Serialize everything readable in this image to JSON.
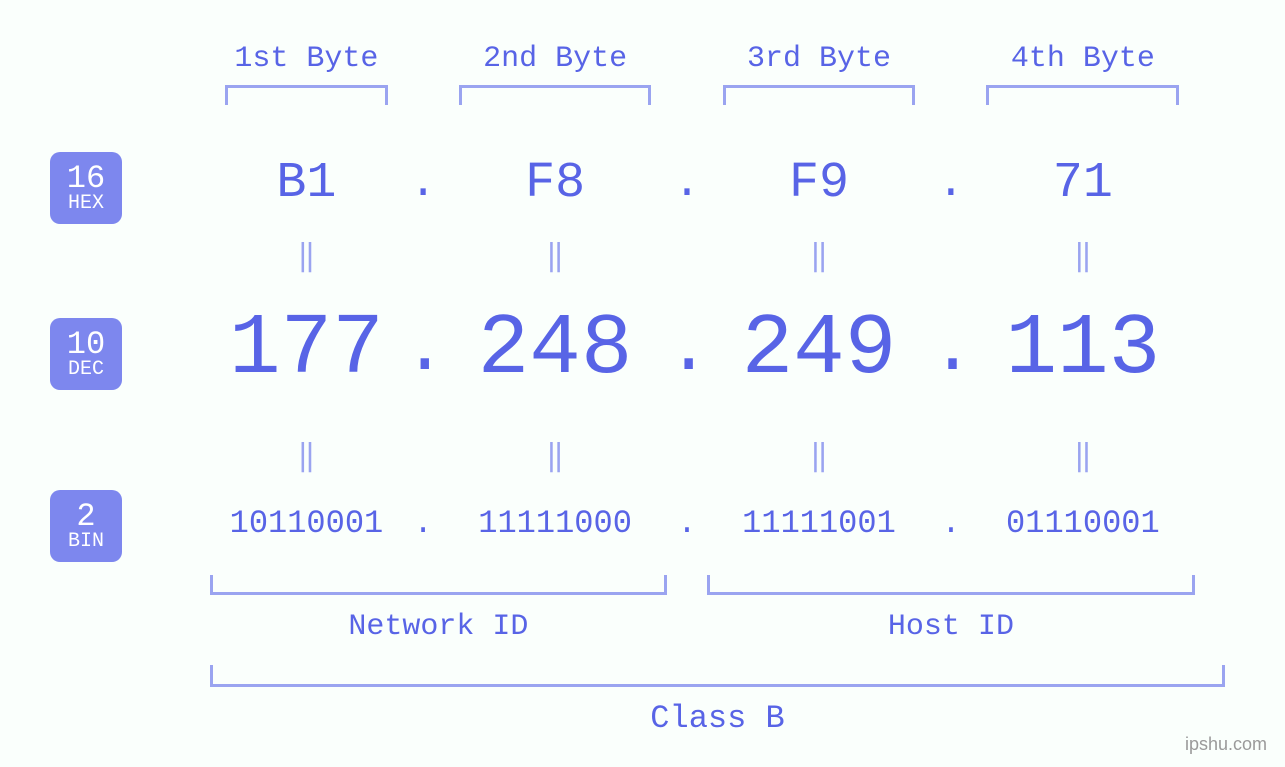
{
  "colors": {
    "primary": "#5864e6",
    "light": "#9aa4f0",
    "badge_bg": "#7d87ee",
    "badge_text": "#ffffff",
    "watermark": "#9a9a9a",
    "background": "#fafffc"
  },
  "fonts": {
    "mono": "Consolas, Menlo, Courier New, monospace",
    "byte_label_size": 30,
    "hex_size": 50,
    "dec_size": 86,
    "bin_size": 32,
    "eq_size": 30,
    "bracket_label_size": 30,
    "class_label_size": 32
  },
  "layout": {
    "col_widths_pct": [
      19,
      4,
      22,
      4,
      22,
      4,
      22
    ],
    "top_bracket_gap_pct": 3
  },
  "byte_headers": [
    "1st Byte",
    "2nd Byte",
    "3rd Byte",
    "4th Byte"
  ],
  "bases": [
    {
      "num": "16",
      "label": "HEX"
    },
    {
      "num": "10",
      "label": "DEC"
    },
    {
      "num": "2",
      "label": "BIN"
    }
  ],
  "hex": {
    "octets": [
      "B1",
      "F8",
      "F9",
      "71"
    ],
    "sep": "."
  },
  "dec": {
    "octets": [
      "177",
      "248",
      "249",
      "113"
    ],
    "sep": "."
  },
  "bin": {
    "octets": [
      "10110001",
      "11111000",
      "11111001",
      "01110001"
    ],
    "sep": "."
  },
  "equals_glyph": "‖",
  "groups": {
    "network": {
      "label": "Network ID",
      "span_cols": [
        0,
        2
      ]
    },
    "host": {
      "label": "Host ID",
      "span_cols": [
        4,
        6
      ]
    }
  },
  "class_label": "Class B",
  "watermark": "ipshu.com"
}
